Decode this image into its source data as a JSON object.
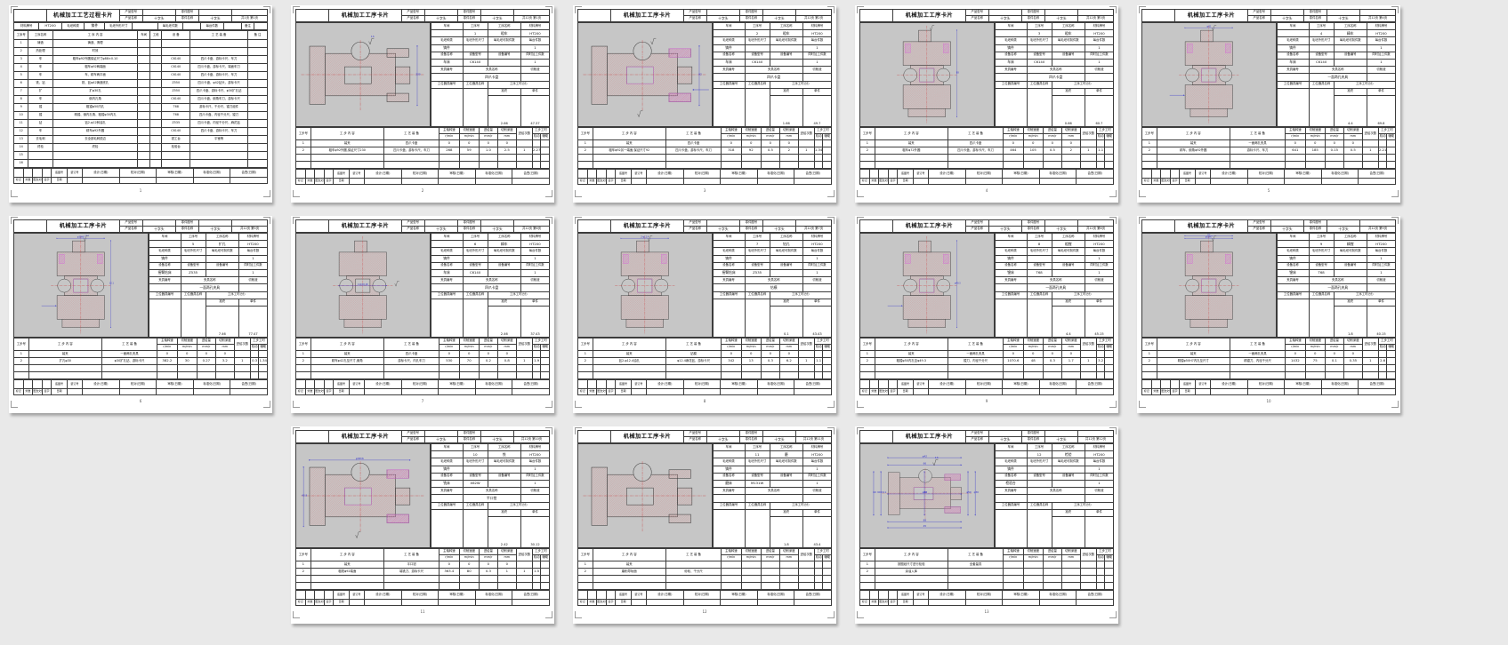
{
  "workspace": {
    "background": "#e9e9e9",
    "page_background": "#ffffff",
    "table_line_color": "#3c3c3c",
    "drawing_canvas_color": "#c6c6c6",
    "part_outline_color": "#3f3f3f",
    "hatch_color": "#dc8484",
    "accent_hatch_color": "#d46ed4",
    "centerline_color": "#cc3232",
    "dimension_color": "#2d2dcf"
  },
  "document": {
    "product_name": "十字头",
    "part_name": "十字头",
    "material": "HT200",
    "blank_kind": "铸件"
  },
  "card_labels": {
    "title_process": "机械加工工艺过程卡片",
    "title_operation": "机械加工工序卡片",
    "product_model": "产品型号",
    "part_drawing_no": "零件图号",
    "product_name": "产品名称",
    "part_name": "零件名称",
    "workshop": "车间",
    "op_no": "工序号",
    "op_name": "工序名称",
    "material": "材料牌号",
    "blank_kind": "毛坯种类",
    "blank_size": "毛坯外形尺寸",
    "per_blank": "每毛坯可制件数",
    "per_unit": "每台件数",
    "equip_name": "设备名称",
    "equip_model": "设备型号",
    "equip_no": "设备编号",
    "simult": "同时加工件数",
    "fixture_no": "夹具编号",
    "fixture_name": "夹具名称",
    "coolant": "切削液",
    "station_no": "工位器具编号",
    "station_name": "工位器具名称",
    "op_time": "工序工时(分)",
    "prep": "准终",
    "piece": "单件",
    "tracing_no": "底图号",
    "binding_no": "装订号",
    "steps": {
      "no": "工步号",
      "content": "工 步 内 容",
      "tooling": "工 艺 装 备",
      "rpm": "主轴转速",
      "speed": "切削速度",
      "feed": "进给量",
      "depth": "切削深度",
      "passes": "进给次数",
      "time": "工步工时",
      "rpm_u": "r/min",
      "speed_u": "m/min",
      "feed_u": "mm/r",
      "depth_u": "mm",
      "mach": "机动",
      "aux": "辅助"
    },
    "signs": [
      "设计(日期)",
      "校对(日期)",
      "审核(日期)",
      "标准化(日期)",
      "会签(日期)"
    ],
    "revisions": [
      "标记",
      "处数",
      "更改文件号",
      "签字",
      "日期"
    ]
  },
  "process_card": {
    "title": "机械加工工艺过程卡片",
    "page_label": "共1页 第1页",
    "page_number": "1",
    "material_strip": {
      "material_label": "材料牌号",
      "material": "HT200",
      "blank_kind_label": "毛坯种类",
      "blank_kind": "铸件",
      "blank_size_label": "毛坯外形尺寸",
      "blank_size": "",
      "per_blank_label": "每毛坯件数",
      "per_blank": "",
      "per_unit_label": "每台件数",
      "per_unit": "",
      "note_label": "备注",
      "note": ""
    },
    "columns": [
      "工序号",
      "工序名称",
      "工 序 内 容",
      "车间",
      "工段",
      "设 备",
      "工 艺 装 备",
      "备 注"
    ],
    "operations": [
      [
        "1",
        "铸造",
        "铸造、清理",
        "",
        "",
        "",
        "",
        ""
      ],
      [
        "2",
        "热处理",
        "时效",
        "",
        "",
        "",
        "",
        ""
      ],
      [
        "3",
        "车",
        "粗车φ92外圆保证尺寸φ88±0.10",
        "",
        "",
        "C6140",
        "四爪卡盘、游标卡尺、车刀",
        ""
      ],
      [
        "4",
        "车",
        "粗车φ92两端面",
        "",
        "",
        "C6140",
        "四爪卡盘、游标卡尺、端面车刀",
        ""
      ],
      [
        "5",
        "车",
        "车、精车两平面",
        "",
        "",
        "C6140",
        "四爪卡盘、游标卡尺、车刀",
        ""
      ],
      [
        "6",
        "铣、钻",
        "铣、钻φ42铸造底孔",
        "",
        "",
        "Z550",
        "四爪卡盘、φ42钻头、游标卡尺",
        ""
      ],
      [
        "7",
        "扩",
        "扩φ30孔",
        "",
        "",
        "Z550",
        "四爪卡盘、游标卡尺、φ30扩孔钻",
        ""
      ],
      [
        "8",
        "车",
        "倒内孔角",
        "",
        "",
        "C6140",
        "四爪卡盘、倒角车刀、游标卡尺",
        ""
      ],
      [
        "9",
        "镗",
        "粗镗φ50内孔",
        "",
        "",
        "T68",
        "游标卡尺、千分尺、镗刀组件",
        ""
      ],
      [
        "10",
        "镗",
        "精镗、倒内孔角、粗镗φ30内孔",
        "",
        "",
        "T68",
        "四爪卡盘、内径千分尺、镗刀",
        ""
      ],
      [
        "11",
        "钻",
        "钻2-φ12斜油孔",
        "",
        "",
        "Z535",
        "四爪卡盘、内径千分尺、麻花钻",
        ""
      ],
      [
        "12",
        "车",
        "精车φ92外圆",
        "",
        "",
        "C6140",
        "四爪卡盘、游标卡尺、车刀",
        ""
      ],
      [
        "13",
        "去毛刺",
        "去全部毛刺锐边",
        "",
        "",
        "钳工台",
        "平锉等",
        ""
      ],
      [
        "14",
        "终检",
        "终检",
        "",
        "",
        "检验台",
        "",
        ""
      ],
      [
        "15",
        "",
        "",
        "",
        "",
        "",
        "",
        ""
      ],
      [
        "16",
        "",
        "",
        "",
        "",
        "",
        "",
        ""
      ]
    ]
  },
  "operation_cards": [
    {
      "op_no": "1",
      "op_name": "粗车",
      "page_label": "共12页 第1页",
      "page_number": "2",
      "workshop": "",
      "blank_size": "",
      "per_blank": "",
      "per_unit": "1",
      "equip_name": "车床",
      "equip_model": "C6140",
      "equip_no": "",
      "simult": "1",
      "fixture_no": "",
      "fixture_name": "四爪卡盘",
      "coolant": "",
      "station_no": "",
      "station_name": "",
      "prep_time": "2.66",
      "piece_time": "47.37",
      "steps": [
        [
          "1",
          "装夹",
          "四爪卡盘",
          "0",
          "0",
          "0",
          "0",
          "",
          "",
          ""
        ],
        [
          "2",
          "粗车φ92外圆,保证尺寸230",
          "四爪卡盘、游标卡尺、车刀",
          "268",
          "59",
          "1.0",
          "2.5",
          "1",
          "2.27",
          ""
        ]
      ],
      "drawing": {
        "orient": "h",
        "accent": false,
        "finish": [
          "top"
        ],
        "finish_label": "1.6",
        "dims": [
          {
            "axis": "v",
            "side": "right",
            "label": "230"
          }
        ]
      }
    },
    {
      "op_no": "2",
      "op_name": "粗车",
      "page_label": "共12页 第2页",
      "page_number": "3",
      "workshop": "",
      "blank_size": "",
      "per_blank": "",
      "per_unit": "1",
      "equip_name": "车床",
      "equip_model": "C6140",
      "equip_no": "",
      "simult": "1",
      "fixture_no": "",
      "fixture_name": "四爪卡盘",
      "coolant": "",
      "station_no": "",
      "station_name": "",
      "prep_time": "1.66",
      "piece_time": "49.7",
      "steps": [
        [
          "1",
          "装夹",
          "四爪卡盘",
          "0",
          "0",
          "0",
          "0",
          "",
          "",
          ""
        ],
        [
          "2",
          "粗车φ92另一端面,保证尺寸92",
          "四爪卡盘、游标卡尺、车刀",
          "318",
          "92",
          "0.5",
          "2",
          "1",
          "1.34",
          ""
        ]
      ],
      "drawing": {
        "orient": "h",
        "accent": true,
        "finish": [
          "top",
          "bottom"
        ],
        "finish_label": "",
        "dims": [
          {
            "axis": "v",
            "side": "right",
            "label": "92"
          }
        ],
        "leader": "right"
      }
    },
    {
      "op_no": "3",
      "op_name": "粗车",
      "page_label": "共12页 第3页",
      "page_number": "4",
      "workshop": "",
      "blank_size": "",
      "per_blank": "",
      "per_unit": "1",
      "equip_name": "车床",
      "equip_model": "C6140",
      "equip_no": "",
      "simult": "1",
      "fixture_no": "",
      "fixture_name": "四爪卡盘",
      "coolant": "",
      "station_no": "",
      "station_name": "",
      "prep_time": "0.66",
      "piece_time": "60.7",
      "steps": [
        [
          "1",
          "装夹",
          "四爪卡盘",
          "0",
          "0",
          "0",
          "0",
          "",
          "",
          ""
        ],
        [
          "2",
          "粗车φ72外圆",
          "四爪卡盘、游标卡尺、车刀",
          "464",
          "105",
          "0.5",
          "2",
          "1",
          "1.1",
          ""
        ]
      ],
      "drawing": {
        "orient": "v",
        "accent": true,
        "finish": [
          "top"
        ],
        "finish_label": "",
        "dims": [
          {
            "axis": "v",
            "side": "right",
            "label": "88"
          }
        ]
      }
    },
    {
      "op_no": "4",
      "op_name": "精车",
      "page_label": "共12页 第4页",
      "page_number": "5",
      "workshop": "",
      "blank_size": "",
      "per_blank": "",
      "per_unit": "1",
      "equip_name": "车床",
      "equip_model": "C6140",
      "equip_no": "",
      "simult": "1",
      "fixture_no": "",
      "fixture_name": "一面两孔夹具",
      "coolant": "",
      "station_no": "",
      "station_name": "",
      "prep_time": "4.4",
      "piece_time": "69.8",
      "steps": [
        [
          "1",
          "装夹",
          "一面两孔夹具",
          "0",
          "0",
          "0",
          "0",
          "",
          "",
          ""
        ],
        [
          "2",
          "精车、倒角φ92外圆",
          "游标卡尺、车刀",
          "641",
          "185",
          "0.15",
          "0.5",
          "1",
          "2.21",
          ""
        ]
      ],
      "drawing": {
        "orient": "v",
        "accent": true,
        "finish": [
          "top"
        ],
        "finish_label": "",
        "dims": [
          {
            "axis": "h",
            "side": "top",
            "label": "φ42"
          }
        ],
        "leader": "left"
      }
    },
    {
      "op_no": "5",
      "op_name": "扩孔",
      "page_label": "共12页 第5页",
      "page_number": "6",
      "workshop": "",
      "blank_size": "",
      "per_blank": "",
      "per_unit": "1",
      "equip_name": "摇臂钻床",
      "equip_model": "Z535",
      "equip_no": "",
      "simult": "1",
      "fixture_no": "",
      "fixture_name": "一面两孔夹具",
      "coolant": "",
      "station_no": "",
      "station_name": "",
      "prep_time": "7.46",
      "piece_time": "77.47",
      "steps": [
        [
          "1",
          "装夹",
          "一面两孔夹具",
          "0",
          "0",
          "0",
          "0",
          "",
          "",
          ""
        ],
        [
          "2",
          "扩孔φ30",
          "φ30扩孔钻、游标卡尺",
          "382.2",
          "30",
          "0.27",
          "3.2",
          "1",
          "0.3",
          "1.34"
        ]
      ],
      "drawing": {
        "orient": "v",
        "accent": true,
        "finish": [
          "top"
        ],
        "finish_label": "12.5",
        "dims": [
          {
            "axis": "h",
            "side": "top",
            "label": "φ30H8"
          },
          {
            "axis": "v",
            "side": "right",
            "label": "12.1"
          }
        ],
        "leader": "left"
      }
    },
    {
      "op_no": "6",
      "op_name": "精车",
      "page_label": "共12页 第6页",
      "page_number": "7",
      "workshop": "",
      "blank_size": "",
      "per_blank": "",
      "per_unit": "1",
      "equip_name": "车床",
      "equip_model": "C6140",
      "equip_no": "",
      "simult": "1",
      "fixture_no": "",
      "fixture_name": "四爪卡盘",
      "coolant": "",
      "station_no": "",
      "station_name": "",
      "prep_time": "2.46",
      "piece_time": "37.43",
      "steps": [
        [
          "1",
          "装夹",
          "四爪卡盘",
          "0",
          "0",
          "0",
          "0",
          "",
          "",
          ""
        ],
        [
          "2",
          "精车φ42孔至尺寸,倒角",
          "游标卡尺、内孔车刀",
          "530",
          "70",
          "0.2",
          "0.8",
          "1",
          "1.9",
          ""
        ]
      ],
      "drawing": {
        "orient": "v",
        "accent": false,
        "finish": [
          "right"
        ],
        "finish_label": "",
        "dims": [
          {
            "axis": "h",
            "side": "mid",
            "label": "114±0.18"
          }
        ]
      }
    },
    {
      "op_no": "7",
      "op_name": "钻孔",
      "page_label": "共12页 第7页",
      "page_number": "8",
      "workshop": "",
      "blank_size": "",
      "per_blank": "",
      "per_unit": "1",
      "equip_name": "摇臂钻床",
      "equip_model": "Z535",
      "equip_no": "",
      "simult": "1",
      "fixture_no": "",
      "fixture_name": "钻模",
      "coolant": "",
      "station_no": "",
      "station_name": "",
      "prep_time": "0.1",
      "piece_time": "43.43",
      "steps": [
        [
          "1",
          "装夹",
          "钻模",
          "0",
          "0",
          "0",
          "0",
          "",
          "",
          ""
        ],
        [
          "2",
          "钻2-φ12.4油孔",
          "φ12.4麻花钻、游标卡尺",
          "342",
          "13",
          "0.3",
          "6.2",
          "1",
          "1.1",
          ""
        ]
      ],
      "drawing": {
        "orient": "v",
        "accent": true,
        "finish": [
          "top"
        ],
        "finish_label": "",
        "dims": [
          {
            "axis": "h",
            "side": "top",
            "label": "2-φ12.4"
          }
        ]
      }
    },
    {
      "op_no": "8",
      "op_name": "粗镗",
      "page_label": "共12页 第8页",
      "page_number": "9",
      "workshop": "",
      "blank_size": "",
      "per_blank": "",
      "per_unit": "1",
      "equip_name": "镗床",
      "equip_model": "T68",
      "equip_no": "",
      "simult": "1",
      "fixture_no": "",
      "fixture_name": "一面两孔夹具",
      "coolant": "",
      "station_no": "",
      "station_name": "",
      "prep_time": "4.4",
      "piece_time": "45.15",
      "steps": [
        [
          "1",
          "装夹",
          "一面两孔夹具",
          "0",
          "0",
          "0",
          "0",
          "",
          "",
          ""
        ],
        [
          "2",
          "粗镗φ50内孔至φ49.3",
          "镗刀、内径千分尺",
          "1070.6",
          "48",
          "0.3",
          "1.7",
          "1",
          "3.2",
          ""
        ]
      ],
      "drawing": {
        "orient": "v",
        "accent": true,
        "finish": [],
        "finish_label": "",
        "dims": [
          {
            "axis": "v",
            "side": "right",
            "label": "φ49.3"
          }
        ],
        "leader": "left"
      }
    },
    {
      "op_no": "9",
      "op_name": "精镗",
      "page_label": "共12页 第9页",
      "page_number": "10",
      "workshop": "",
      "blank_size": "",
      "per_blank": "",
      "per_unit": "1",
      "equip_name": "镗床",
      "equip_model": "T68",
      "equip_no": "",
      "simult": "1",
      "fixture_no": "",
      "fixture_name": "一面两孔夹具",
      "coolant": "",
      "station_no": "",
      "station_name": "",
      "prep_time": "1.8",
      "piece_time": "40.15",
      "steps": [
        [
          "1",
          "装夹",
          "一面两孔夹具",
          "0",
          "0",
          "0",
          "0",
          "",
          "",
          ""
        ],
        [
          "2",
          "精镗φ50H7内孔至尺寸",
          "精镗刀、内径千分尺",
          "1432",
          "75",
          "0.1",
          "0.35",
          "1",
          "2.6",
          ""
        ]
      ],
      "drawing": {
        "orient": "v",
        "accent": true,
        "finish": [
          "top"
        ],
        "finish_label": "",
        "dims": [
          {
            "axis": "h",
            "side": "top",
            "label": "φ50H7"
          },
          {
            "axis": "h",
            "side": "top2",
            "label": "R3"
          }
        ]
      }
    },
    {
      "op_no": "10",
      "op_name": "铣",
      "page_label": "共12页 第10页",
      "page_number": "11",
      "workshop": "",
      "blank_size": "",
      "per_blank": "",
      "per_unit": "1",
      "equip_name": "铣床",
      "equip_model": "X62W",
      "equip_no": "",
      "simult": "1",
      "fixture_no": "",
      "fixture_name": "平口钳",
      "coolant": "",
      "station_no": "",
      "station_name": "",
      "prep_time": "2.42",
      "piece_time": "30.12",
      "steps": [
        [
          "1",
          "装夹",
          "平口钳",
          "0",
          "0",
          "0",
          "0",
          "",
          "",
          ""
        ],
        [
          "2",
          "粗铣φ92端面",
          "端铣刀、游标卡尺",
          "363.4",
          "80",
          "0.3",
          "1",
          "1",
          "1.5",
          ""
        ]
      ],
      "drawing": {
        "orient": "h",
        "accent": true,
        "finish": [
          "bottom"
        ],
        "finish_label": "",
        "dims": [
          {
            "axis": "v",
            "side": "left",
            "label": "43.8"
          },
          {
            "axis": "h",
            "side": "top",
            "label": "φ92h6"
          }
        ]
      }
    },
    {
      "op_no": "11",
      "op_name": "磨",
      "page_label": "共12页 第11页",
      "page_number": "12",
      "workshop": "",
      "blank_size": "",
      "per_blank": "",
      "per_unit": "1",
      "equip_name": "磨床",
      "equip_model": "M131W",
      "equip_no": "",
      "simult": "1",
      "fixture_no": "",
      "fixture_name": "",
      "coolant": "",
      "station_no": "",
      "station_name": "",
      "prep_time": "1.8",
      "piece_time": "43.4",
      "steps": [
        [
          "1",
          "装夹",
          "",
          "",
          "",
          "",
          "",
          "",
          "",
          ""
        ],
        [
          "2",
          "磨削导轨面",
          "砂轮、千分尺",
          "",
          "",
          "",
          "",
          "",
          "",
          ""
        ]
      ],
      "drawing": {
        "orient": "h",
        "accent": false,
        "finish": [],
        "finish_label": "",
        "dims": []
      }
    },
    {
      "op_no": "12",
      "op_name": "检验",
      "page_label": "共12页 第12页",
      "page_number": "13",
      "workshop": "",
      "blank_size": "",
      "per_blank": "",
      "per_unit": "1",
      "equip_name": "检验台",
      "equip_model": "",
      "equip_no": "",
      "simult": "1",
      "fixture_no": "",
      "fixture_name": "",
      "coolant": "",
      "station_no": "",
      "station_name": "",
      "prep_time": "",
      "piece_time": "",
      "steps": [
        [
          "1",
          "按图纸尺寸进行检验",
          "全套量具",
          "",
          "",
          "",
          "",
          "",
          "",
          ""
        ],
        [
          "2",
          "涂油入库",
          "",
          "",
          "",
          "",
          "",
          "",
          "",
          ""
        ]
      ],
      "drawing": {
        "orient": "h",
        "dense": true,
        "accent": true,
        "finish": [
          "top"
        ],
        "finish_label": "1.6",
        "dims": [
          {
            "axis": "h",
            "side": "top",
            "label": "66"
          },
          {
            "axis": "h",
            "side": "top2",
            "label": "φ42"
          },
          {
            "axis": "v",
            "side": "left",
            "label": "90±0.1"
          },
          {
            "axis": "v",
            "side": "left2",
            "label": "60"
          },
          {
            "axis": "v",
            "side": "right",
            "label": "φ50"
          },
          {
            "axis": "v",
            "side": "right2",
            "label": "φ30"
          },
          {
            "axis": "h",
            "side": "bottom",
            "label": "88"
          },
          {
            "axis": "h",
            "side": "bottom2",
            "label": "45"
          },
          {
            "axis": "h",
            "side": "mid",
            "label": "φ62"
          },
          {
            "axis": "v",
            "side": "mid",
            "label": "30"
          }
        ]
      }
    }
  ]
}
